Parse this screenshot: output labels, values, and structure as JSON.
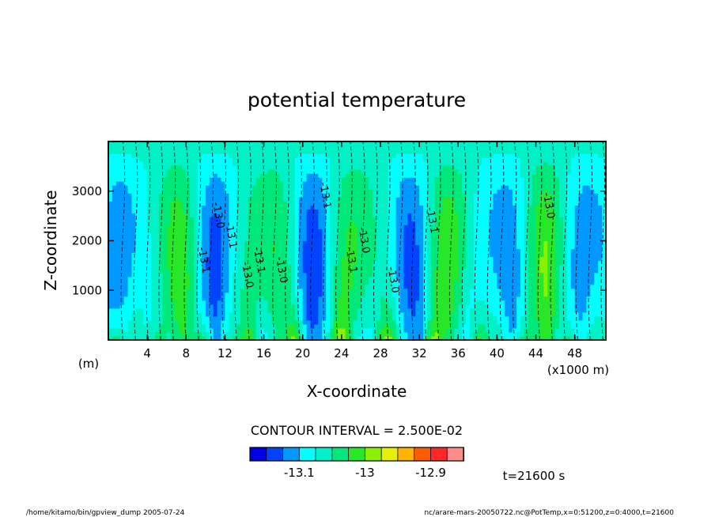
{
  "chart_data": {
    "type": "heatmap",
    "title": "potential temperature",
    "xlabel": "X-coordinate",
    "ylabel": "Z-coordinate",
    "x_unit_left": "(m)",
    "x_scale_label": "(x1000 m)",
    "xlim": [
      0,
      51.2
    ],
    "ylim": [
      0,
      4000
    ],
    "x_ticks": [
      4,
      8,
      12,
      16,
      20,
      24,
      28,
      32,
      36,
      40,
      44,
      48
    ],
    "y_ticks": [
      1000,
      2000,
      3000
    ],
    "contour_interval_label": "CONTOUR INTERVAL = 2.500E-02",
    "colorbar_levels": [
      -13.175,
      -13.15,
      -13.125,
      -13.1,
      -13.075,
      -13.05,
      -13.025,
      -13.0,
      -12.975,
      -12.95,
      -12.925,
      -12.9,
      -12.875,
      -12.85
    ],
    "colorbar_colors": [
      "#0000e6",
      "#0044ff",
      "#0099ff",
      "#00ffff",
      "#00f0c8",
      "#00e87a",
      "#28e628",
      "#8cf000",
      "#e6f000",
      "#ffb400",
      "#ff5a00",
      "#ff2828",
      "#ff8c8c"
    ],
    "colorbar_tick_labels": [
      {
        "value": -13.1,
        "label": "-13.1"
      },
      {
        "value": -13.0,
        "label": "-13"
      },
      {
        "value": -12.9,
        "label": "-12.9"
      }
    ],
    "time_label": "t=21600 s",
    "contour_labels": [
      "-13.1",
      "-13.0",
      "-13.1",
      "-13.0",
      "-13.1",
      "-13.0",
      "-13.1",
      "-13.1",
      "-13.0",
      "-13.0",
      "-13.1",
      "-13.0"
    ]
  },
  "footer": {
    "left": "/home/kitamo/bin/gpview_dump  2005-07-24",
    "right": "nc/arare-mars-20050722.nc@PotTemp,x=0:51200,z=0:4000,t=21600"
  }
}
